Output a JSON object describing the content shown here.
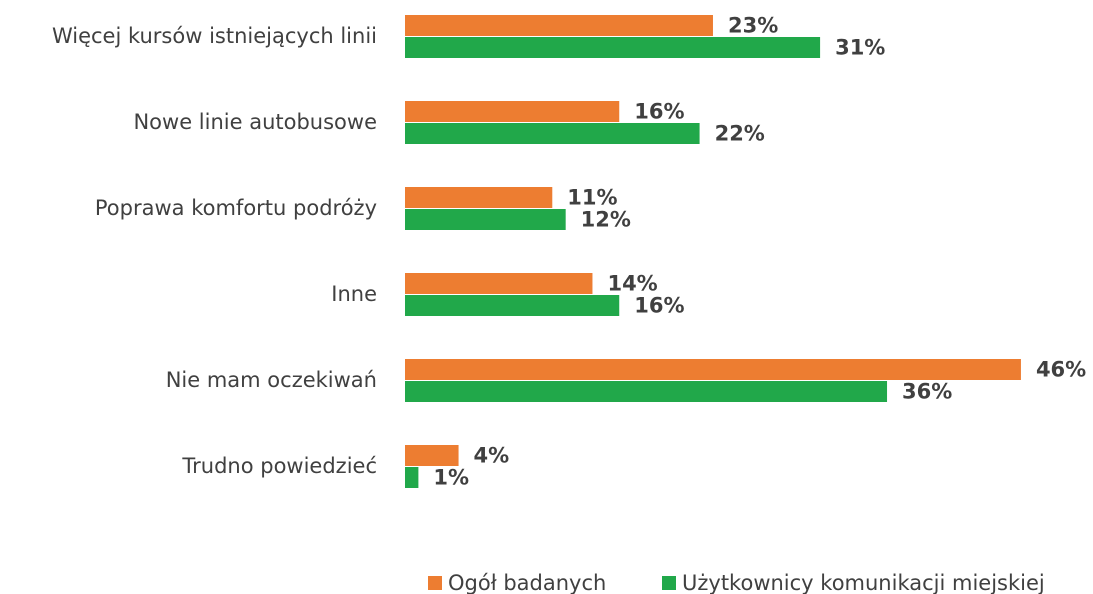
{
  "chart_data": {
    "type": "hbar",
    "categories": [
      "Więcej kursów istniejących linii",
      "Nowe linie autobusowe",
      "Poprawa komfortu podróży",
      "Inne",
      "Nie mam oczekiwań",
      "Trudno powiedzieć"
    ],
    "series": [
      {
        "name": "Ogół badanych",
        "color": "#ed7d31",
        "values": [
          23,
          16,
          11,
          14,
          46,
          4
        ],
        "value_labels": [
          "23%",
          "16%",
          "11%",
          "14%",
          "46%",
          "4%"
        ]
      },
      {
        "name": "Użytkownicy komunikacji miejskiej",
        "color": "#21a84a",
        "values": [
          31,
          22,
          12,
          16,
          36,
          1
        ],
        "value_labels": [
          "31%",
          "22%",
          "12%",
          "16%",
          "36%",
          "1%"
        ]
      }
    ],
    "legend": "bottom"
  }
}
